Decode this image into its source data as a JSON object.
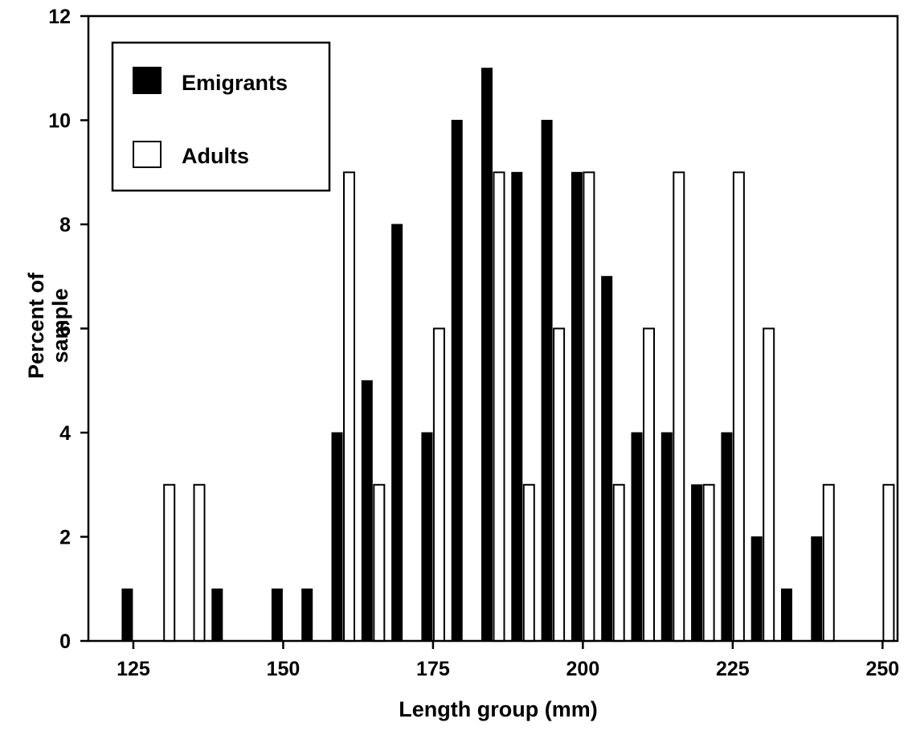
{
  "chart_data": {
    "type": "bar",
    "xlabel": "Length group (mm)",
    "ylabel": "Percent of sample",
    "xlim": [
      117.5,
      252.5
    ],
    "ylim": [
      0,
      12
    ],
    "x_ticks": [
      125,
      150,
      175,
      200,
      225,
      250
    ],
    "y_ticks": [
      0,
      2,
      4,
      6,
      8,
      10,
      12
    ],
    "grid": false,
    "legend_position": "top-left",
    "series": [
      {
        "name": "Emigrants",
        "color": "#000000",
        "fill": "solid",
        "x": [
          125,
          140,
          150,
          155,
          160,
          165,
          170,
          175,
          180,
          185,
          190,
          195,
          200,
          205,
          210,
          215,
          220,
          225,
          230,
          235,
          240
        ],
        "values": [
          1,
          1,
          1,
          1,
          4,
          5,
          8,
          4,
          10,
          11,
          9,
          10,
          9,
          7,
          4,
          4,
          3,
          4,
          2,
          1,
          2
        ]
      },
      {
        "name": "Adults",
        "color": "#ffffff",
        "fill": "open",
        "x": [
          130,
          135,
          160,
          165,
          175,
          185,
          190,
          195,
          200,
          205,
          210,
          215,
          220,
          225,
          230,
          240,
          250
        ],
        "values": [
          3,
          3,
          9,
          3,
          6,
          9,
          3,
          6,
          9,
          3,
          6,
          9,
          3,
          9,
          6,
          3,
          3
        ]
      }
    ]
  }
}
